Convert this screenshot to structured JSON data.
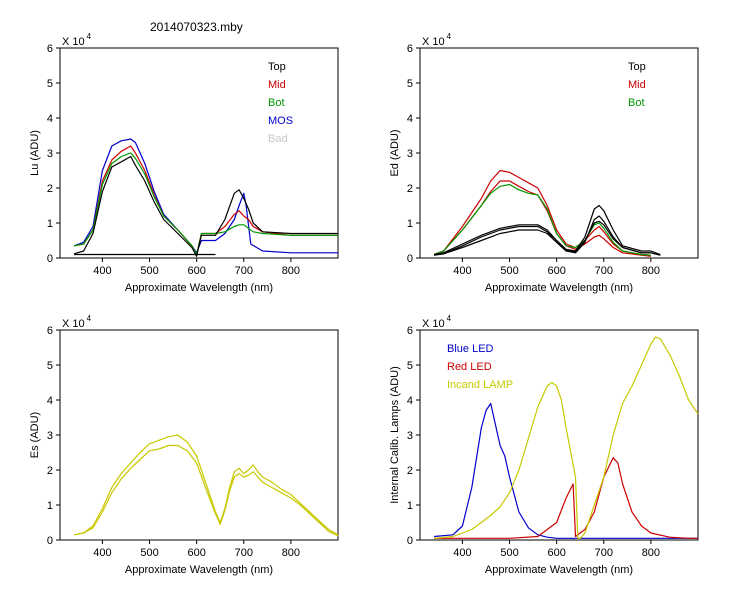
{
  "title": "2014070323.mby",
  "chart_data": [
    {
      "type": "line",
      "title": "2014070323.mby",
      "xlabel": "Approximate Wavelength (nm)",
      "ylabel": "Lu (ADU)",
      "multiplier": "X 10",
      "exponent": "4",
      "xlim": [
        310,
        900
      ],
      "ylim": [
        0,
        6
      ],
      "xticks": [
        400,
        500,
        600,
        700,
        800
      ],
      "yticks": [
        0,
        1,
        2,
        3,
        4,
        5,
        6
      ],
      "legend": [
        {
          "label": "Top",
          "color": "#000000"
        },
        {
          "label": "Mid",
          "color": "#cc0000"
        },
        {
          "label": "Bot",
          "color": "#009900"
        },
        {
          "label": "MOS",
          "color": "#0000cc"
        },
        {
          "label": "Bad",
          "color": "#c8c8c8"
        }
      ],
      "series": [
        {
          "name": "MOS",
          "color": "#0000cc",
          "x": [
            340,
            360,
            380,
            400,
            420,
            440,
            460,
            470,
            490,
            510,
            530,
            560,
            590,
            600,
            610,
            640,
            660,
            680,
            690,
            700,
            705,
            715,
            740,
            800,
            900
          ],
          "y": [
            0.35,
            0.45,
            0.9,
            2.5,
            3.2,
            3.35,
            3.4,
            3.3,
            2.7,
            1.9,
            1.25,
            0.8,
            0.35,
            0.15,
            0.5,
            0.5,
            0.7,
            1.1,
            1.5,
            1.85,
            1.5,
            0.4,
            0.2,
            0.15,
            0.15
          ]
        },
        {
          "name": "Mid",
          "color": "#cc0000",
          "x": [
            340,
            360,
            380,
            400,
            420,
            440,
            460,
            470,
            490,
            510,
            530,
            560,
            590,
            600,
            610,
            640,
            660,
            680,
            690,
            700,
            710,
            720,
            740,
            800,
            900
          ],
          "y": [
            0.35,
            0.4,
            0.8,
            2.2,
            2.8,
            3.05,
            3.2,
            3.0,
            2.5,
            1.8,
            1.2,
            0.8,
            0.35,
            0.1,
            0.7,
            0.7,
            0.9,
            1.25,
            1.35,
            1.2,
            1.1,
            0.9,
            0.75,
            0.65,
            0.65
          ]
        },
        {
          "name": "Bot",
          "color": "#009900",
          "x": [
            340,
            360,
            380,
            400,
            420,
            440,
            460,
            470,
            490,
            510,
            530,
            560,
            590,
            600,
            610,
            640,
            660,
            680,
            690,
            700,
            710,
            720,
            740,
            800,
            900
          ],
          "y": [
            0.35,
            0.4,
            0.8,
            2.1,
            2.7,
            2.9,
            3.0,
            2.85,
            2.4,
            1.75,
            1.2,
            0.8,
            0.35,
            0.1,
            0.7,
            0.7,
            0.75,
            0.9,
            0.95,
            0.95,
            0.85,
            0.75,
            0.7,
            0.65,
            0.65
          ]
        },
        {
          "name": "Top",
          "color": "#000000",
          "x": [
            340,
            360,
            380,
            400,
            420,
            440,
            460,
            470,
            490,
            510,
            530,
            560,
            590,
            600,
            610,
            640,
            660,
            680,
            690,
            700,
            710,
            720,
            740,
            800,
            900
          ],
          "y": [
            0.12,
            0.2,
            0.7,
            1.9,
            2.6,
            2.75,
            2.9,
            2.65,
            2.2,
            1.6,
            1.1,
            0.7,
            0.3,
            0.05,
            0.65,
            0.65,
            1.1,
            1.85,
            1.95,
            1.7,
            1.4,
            1.0,
            0.75,
            0.7,
            0.7
          ]
        },
        {
          "name": "Top baseline",
          "color": "#000000",
          "x": [
            340,
            600,
            640
          ],
          "y": [
            0.1,
            0.1,
            0.1
          ]
        }
      ]
    },
    {
      "type": "line",
      "xlabel": "Approximate Wavelength (nm)",
      "ylabel": "Ed  (ADU)",
      "multiplier": "X 10",
      "exponent": "4",
      "xlim": [
        310,
        900
      ],
      "ylim": [
        0,
        6
      ],
      "xticks": [
        400,
        500,
        600,
        700,
        800
      ],
      "yticks": [
        0,
        1,
        2,
        3,
        4,
        5,
        6
      ],
      "legend": [
        {
          "label": "Top",
          "color": "#000000"
        },
        {
          "label": "Mid",
          "color": "#cc0000"
        },
        {
          "label": "Bot",
          "color": "#009900"
        }
      ],
      "series": [
        {
          "name": "Mid",
          "color": "#cc0000",
          "x": [
            340,
            360,
            400,
            440,
            460,
            480,
            500,
            520,
            540,
            560,
            580,
            600,
            620,
            640,
            660,
            680,
            690,
            700,
            720,
            740,
            780,
            800
          ],
          "y": [
            0.1,
            0.2,
            0.9,
            1.7,
            2.2,
            2.5,
            2.45,
            2.3,
            2.15,
            2.0,
            1.5,
            0.8,
            0.4,
            0.3,
            0.5,
            0.8,
            0.9,
            0.75,
            0.4,
            0.2,
            0.1,
            0.08
          ]
        },
        {
          "name": "Mid 2",
          "color": "#cc0000",
          "x": [
            340,
            360,
            400,
            440,
            460,
            480,
            500,
            520,
            540,
            560,
            580,
            600,
            620,
            640,
            660,
            680,
            690,
            700,
            720,
            740,
            780,
            800
          ],
          "y": [
            0.1,
            0.2,
            0.8,
            1.5,
            1.9,
            2.2,
            2.2,
            2.05,
            1.9,
            1.8,
            1.35,
            0.7,
            0.35,
            0.25,
            0.4,
            0.6,
            0.65,
            0.55,
            0.3,
            0.15,
            0.08,
            0.05
          ]
        },
        {
          "name": "Bot",
          "color": "#009900",
          "x": [
            340,
            360,
            400,
            440,
            460,
            480,
            500,
            520,
            540,
            560,
            580,
            600,
            620,
            640,
            660,
            680,
            690,
            700,
            720,
            740,
            780,
            800
          ],
          "y": [
            0.1,
            0.2,
            0.8,
            1.5,
            1.85,
            2.05,
            2.1,
            1.95,
            1.85,
            1.8,
            1.4,
            0.7,
            0.35,
            0.3,
            0.5,
            0.95,
            1.0,
            0.85,
            0.45,
            0.2,
            0.1,
            0.08
          ]
        },
        {
          "name": "Top",
          "color": "#000000",
          "x": [
            340,
            360,
            400,
            440,
            480,
            520,
            560,
            580,
            600,
            620,
            640,
            660,
            680,
            690,
            700,
            720,
            740,
            780,
            800,
            820
          ],
          "y": [
            0.1,
            0.15,
            0.4,
            0.65,
            0.85,
            0.95,
            0.95,
            0.8,
            0.5,
            0.25,
            0.2,
            0.6,
            1.4,
            1.5,
            1.35,
            0.8,
            0.35,
            0.2,
            0.2,
            0.1
          ]
        },
        {
          "name": "Top 2",
          "color": "#000000",
          "x": [
            340,
            360,
            400,
            440,
            480,
            520,
            560,
            580,
            600,
            620,
            640,
            660,
            680,
            690,
            700,
            720,
            740,
            780,
            800,
            820
          ],
          "y": [
            0.08,
            0.12,
            0.3,
            0.5,
            0.7,
            0.8,
            0.8,
            0.7,
            0.45,
            0.2,
            0.15,
            0.45,
            1.1,
            1.2,
            1.05,
            0.6,
            0.3,
            0.15,
            0.15,
            0.08
          ]
        },
        {
          "name": "Top 3",
          "color": "#000000",
          "x": [
            340,
            360,
            400,
            440,
            480,
            520,
            560,
            580,
            600,
            620,
            640,
            660,
            680,
            690,
            700,
            720,
            740,
            780,
            800,
            820
          ],
          "y": [
            0.08,
            0.12,
            0.35,
            0.6,
            0.8,
            0.9,
            0.9,
            0.75,
            0.5,
            0.22,
            0.18,
            0.5,
            1.0,
            1.05,
            0.95,
            0.55,
            0.3,
            0.15,
            0.15,
            0.08
          ]
        }
      ]
    },
    {
      "type": "line",
      "xlabel": "Approximate Wavelength (nm)",
      "ylabel": "Es  (ADU)",
      "multiplier": "X 10",
      "exponent": "4",
      "xlim": [
        310,
        900
      ],
      "ylim": [
        0,
        6
      ],
      "xticks": [
        400,
        500,
        600,
        700,
        800
      ],
      "yticks": [
        0,
        1,
        2,
        3,
        4,
        5,
        6
      ],
      "legend": [],
      "series": [
        {
          "name": "Es",
          "color": "#c8c800",
          "x": [
            340,
            360,
            380,
            400,
            420,
            440,
            460,
            480,
            500,
            520,
            540,
            560,
            580,
            600,
            620,
            640,
            650,
            660,
            670,
            680,
            690,
            700,
            710,
            720,
            730,
            740,
            760,
            780,
            800,
            820,
            840,
            860,
            880,
            900
          ],
          "y": [
            0.15,
            0.2,
            0.4,
            0.9,
            1.5,
            1.9,
            2.2,
            2.5,
            2.75,
            2.85,
            2.95,
            3.0,
            2.8,
            2.4,
            1.6,
            0.8,
            0.5,
            0.9,
            1.5,
            1.95,
            2.05,
            1.9,
            2.0,
            2.15,
            1.95,
            1.8,
            1.65,
            1.45,
            1.3,
            1.05,
            0.8,
            0.55,
            0.3,
            0.15
          ]
        },
        {
          "name": "Es 2",
          "color": "#c8c800",
          "x": [
            340,
            360,
            380,
            400,
            420,
            440,
            460,
            480,
            500,
            520,
            540,
            560,
            580,
            600,
            620,
            640,
            650,
            660,
            670,
            680,
            690,
            700,
            710,
            720,
            730,
            740,
            760,
            780,
            800,
            820,
            840,
            860,
            880,
            900
          ],
          "y": [
            0.15,
            0.2,
            0.35,
            0.8,
            1.35,
            1.75,
            2.05,
            2.3,
            2.55,
            2.6,
            2.7,
            2.7,
            2.55,
            2.2,
            1.45,
            0.75,
            0.45,
            0.85,
            1.4,
            1.8,
            1.9,
            1.8,
            1.85,
            1.95,
            1.8,
            1.65,
            1.5,
            1.35,
            1.2,
            1.0,
            0.75,
            0.5,
            0.25,
            0.12
          ]
        }
      ]
    },
    {
      "type": "line",
      "xlabel": "Approximate Wavelength (nm)",
      "ylabel": "Internal Calib. Lamps (ADU)",
      "multiplier": "X 10",
      "exponent": "4",
      "xlim": [
        310,
        900
      ],
      "ylim": [
        0,
        6
      ],
      "xticks": [
        400,
        500,
        600,
        700,
        800
      ],
      "yticks": [
        0,
        1,
        2,
        3,
        4,
        5,
        6
      ],
      "legend": [
        {
          "label": "Blue LED",
          "color": "#0000cc"
        },
        {
          "label": "Red LED",
          "color": "#cc0000"
        },
        {
          "label": "Incand LAMP",
          "color": "#c8c800"
        }
      ],
      "series": [
        {
          "name": "Blue LED",
          "color": "#0000cc",
          "x": [
            340,
            380,
            400,
            420,
            440,
            450,
            460,
            470,
            480,
            490,
            500,
            520,
            540,
            560,
            580,
            600,
            900
          ],
          "y": [
            0.1,
            0.15,
            0.4,
            1.5,
            3.2,
            3.7,
            3.9,
            3.3,
            2.7,
            2.4,
            1.8,
            0.8,
            0.35,
            0.15,
            0.08,
            0.05,
            0.05
          ]
        },
        {
          "name": "Red LED",
          "color": "#cc0000",
          "x": [
            340,
            500,
            560,
            600,
            620,
            635,
            640,
            660,
            680,
            700,
            720,
            730,
            740,
            760,
            780,
            800,
            840,
            880,
            900
          ],
          "y": [
            0.05,
            0.05,
            0.1,
            0.5,
            1.2,
            1.6,
            0.1,
            0.3,
            0.8,
            1.8,
            2.35,
            2.2,
            1.6,
            0.8,
            0.4,
            0.2,
            0.08,
            0.05,
            0.05
          ]
        },
        {
          "name": "Incand LAMP",
          "color": "#c8c800",
          "x": [
            340,
            380,
            420,
            460,
            480,
            500,
            520,
            540,
            560,
            580,
            590,
            600,
            610,
            620,
            630,
            640,
            645,
            650,
            660,
            680,
            700,
            720,
            740,
            760,
            780,
            800,
            810,
            820,
            840,
            860,
            880,
            900
          ],
          "y": [
            0.05,
            0.1,
            0.3,
            0.7,
            0.95,
            1.35,
            2.0,
            2.9,
            3.8,
            4.4,
            4.5,
            4.4,
            4.0,
            3.2,
            2.5,
            1.8,
            0.05,
            0.05,
            0.2,
            1.0,
            1.8,
            3.0,
            3.9,
            4.4,
            5.0,
            5.6,
            5.8,
            5.75,
            5.3,
            4.7,
            4.0,
            3.6
          ]
        }
      ]
    }
  ]
}
